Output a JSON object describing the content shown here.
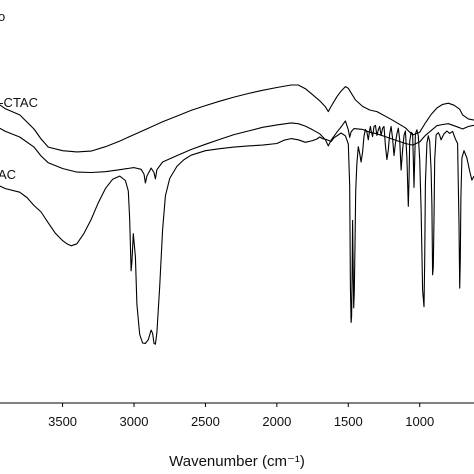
{
  "chart_data": {
    "type": "line",
    "xlabel": "Wavenumber (cm⁻¹)",
    "x_reversed": true,
    "xlim": [
      3980,
      620
    ],
    "ylim": [
      0,
      100
    ],
    "y_axis_labels": false,
    "grid": false,
    "x_ticks": [
      3500,
      3000,
      2500,
      2000,
      1500,
      1000
    ],
    "series": [
      {
        "name": "o",
        "points": [
          [
            3980,
            75
          ],
          [
            3900,
            73
          ],
          [
            3800,
            71.5
          ],
          [
            3700,
            68
          ],
          [
            3650,
            65.5
          ],
          [
            3600,
            63.5
          ],
          [
            3500,
            62.6
          ],
          [
            3400,
            62.3
          ],
          [
            3300,
            62.5
          ],
          [
            3200,
            63.6
          ],
          [
            3100,
            65
          ],
          [
            3000,
            66.6
          ],
          [
            2900,
            68.2
          ],
          [
            2800,
            69.8
          ],
          [
            2700,
            71.2
          ],
          [
            2600,
            72.6
          ],
          [
            2500,
            73.8
          ],
          [
            2400,
            74.9
          ],
          [
            2300,
            75.9
          ],
          [
            2200,
            76.8
          ],
          [
            2100,
            77.6
          ],
          [
            2000,
            78.3
          ],
          [
            1900,
            78.9
          ],
          [
            1850,
            78.9
          ],
          [
            1800,
            78
          ],
          [
            1750,
            76.5
          ],
          [
            1700,
            75
          ],
          [
            1660,
            73.5
          ],
          [
            1640,
            72.3
          ],
          [
            1620,
            73.6
          ],
          [
            1580,
            76
          ],
          [
            1550,
            77.4
          ],
          [
            1520,
            78.5
          ],
          [
            1500,
            78.1
          ],
          [
            1450,
            75.2
          ],
          [
            1400,
            73.6
          ],
          [
            1350,
            72.7
          ],
          [
            1300,
            72.3
          ],
          [
            1200,
            70.4
          ],
          [
            1100,
            68.3
          ],
          [
            1050,
            66.5
          ],
          [
            1000,
            67.2
          ],
          [
            960,
            69.5
          ],
          [
            920,
            71.6
          ],
          [
            880,
            73.2
          ],
          [
            840,
            74.1
          ],
          [
            800,
            74.4
          ],
          [
            760,
            73.9
          ],
          [
            720,
            72.9
          ],
          [
            700,
            71.5
          ],
          [
            660,
            70.5
          ],
          [
            620,
            70.2
          ]
        ]
      },
      {
        "name": "o-CTAC",
        "points": [
          [
            3980,
            69
          ],
          [
            3900,
            67.4
          ],
          [
            3800,
            66
          ],
          [
            3700,
            63.5
          ],
          [
            3650,
            61.3
          ],
          [
            3600,
            59.6
          ],
          [
            3500,
            58.2
          ],
          [
            3400,
            57.3
          ],
          [
            3300,
            57.2
          ],
          [
            3200,
            57.4
          ],
          [
            3100,
            57.9
          ],
          [
            3000,
            58.4
          ],
          [
            2950,
            58
          ],
          [
            2930,
            56.8
          ],
          [
            2920,
            54.6
          ],
          [
            2910,
            56.3
          ],
          [
            2880,
            58.3
          ],
          [
            2860,
            57.2
          ],
          [
            2850,
            55.6
          ],
          [
            2840,
            57.9
          ],
          [
            2800,
            59.8
          ],
          [
            2700,
            61.4
          ],
          [
            2600,
            62.9
          ],
          [
            2500,
            64.2
          ],
          [
            2400,
            65.4
          ],
          [
            2300,
            66.6
          ],
          [
            2200,
            67.5
          ],
          [
            2100,
            68.4
          ],
          [
            2000,
            69
          ],
          [
            1900,
            69.5
          ],
          [
            1850,
            69.3
          ],
          [
            1800,
            68.7
          ],
          [
            1750,
            67.8
          ],
          [
            1700,
            66.8
          ],
          [
            1660,
            65.3
          ],
          [
            1640,
            63.8
          ],
          [
            1620,
            65.2
          ],
          [
            1580,
            67.2
          ],
          [
            1550,
            68.5
          ],
          [
            1520,
            70
          ],
          [
            1500,
            67.8
          ],
          [
            1490,
            65.9
          ],
          [
            1480,
            67.3
          ],
          [
            1460,
            68.1
          ],
          [
            1400,
            67.9
          ],
          [
            1350,
            67.2
          ],
          [
            1300,
            66.8
          ],
          [
            1200,
            65.6
          ],
          [
            1100,
            64.4
          ],
          [
            1050,
            64
          ],
          [
            1000,
            64.8
          ],
          [
            960,
            66.4
          ],
          [
            920,
            67.6
          ],
          [
            880,
            68.8
          ],
          [
            840,
            69.1
          ],
          [
            800,
            69.3
          ],
          [
            760,
            68.8
          ],
          [
            720,
            68.3
          ],
          [
            700,
            68
          ],
          [
            660,
            68.6
          ],
          [
            620,
            68.9
          ]
        ]
      },
      {
        "name": "AC",
        "points": [
          [
            3980,
            54.5
          ],
          [
            3900,
            53.2
          ],
          [
            3800,
            52.3
          ],
          [
            3750,
            51
          ],
          [
            3700,
            49
          ],
          [
            3650,
            47.4
          ],
          [
            3600,
            44.7
          ],
          [
            3550,
            42.1
          ],
          [
            3500,
            40.3
          ],
          [
            3470,
            39.5
          ],
          [
            3440,
            39
          ],
          [
            3400,
            39.5
          ],
          [
            3350,
            42.1
          ],
          [
            3300,
            45.5
          ],
          [
            3250,
            49.7
          ],
          [
            3200,
            53.2
          ],
          [
            3150,
            55.5
          ],
          [
            3100,
            56.3
          ],
          [
            3060,
            55.2
          ],
          [
            3040,
            52.6
          ],
          [
            3030,
            45.5
          ],
          [
            3020,
            32.8
          ],
          [
            3015,
            35
          ],
          [
            3005,
            42
          ],
          [
            2990,
            36.3
          ],
          [
            2980,
            24.5
          ],
          [
            2960,
            17
          ],
          [
            2940,
            14.9
          ],
          [
            2920,
            14.8
          ],
          [
            2900,
            15.7
          ],
          [
            2880,
            18.1
          ],
          [
            2870,
            17.3
          ],
          [
            2860,
            14.8
          ],
          [
            2850,
            14.6
          ],
          [
            2840,
            17.5
          ],
          [
            2820,
            28.9
          ],
          [
            2800,
            43
          ],
          [
            2780,
            51.4
          ],
          [
            2750,
            55.7
          ],
          [
            2700,
            58.7
          ],
          [
            2650,
            60.4
          ],
          [
            2600,
            61.5
          ],
          [
            2500,
            62.6
          ],
          [
            2400,
            63.1
          ],
          [
            2300,
            63.5
          ],
          [
            2200,
            63.8
          ],
          [
            2100,
            64
          ],
          [
            2000,
            64.4
          ],
          [
            1950,
            65.2
          ],
          [
            1900,
            65.6
          ],
          [
            1850,
            65.3
          ],
          [
            1800,
            64.7
          ],
          [
            1750,
            65.1
          ],
          [
            1720,
            65.5
          ],
          [
            1700,
            66
          ],
          [
            1680,
            65.6
          ],
          [
            1650,
            65.3
          ],
          [
            1620,
            64.9
          ],
          [
            1600,
            65.8
          ],
          [
            1550,
            67
          ],
          [
            1520,
            66.3
          ],
          [
            1500,
            64.3
          ],
          [
            1490,
            53.8
          ],
          [
            1485,
            28.8
          ],
          [
            1480,
            20
          ],
          [
            1477,
            21.5
          ],
          [
            1473,
            31.4
          ],
          [
            1470,
            45.3
          ],
          [
            1465,
            31
          ],
          [
            1462,
            23.6
          ],
          [
            1458,
            27.7
          ],
          [
            1453,
            39.2
          ],
          [
            1448,
            52.6
          ],
          [
            1440,
            59.5
          ],
          [
            1430,
            63.6
          ],
          [
            1420,
            61.9
          ],
          [
            1410,
            59.8
          ],
          [
            1400,
            62.3
          ],
          [
            1390,
            66.2
          ],
          [
            1380,
            67.9
          ],
          [
            1370,
            67.2
          ],
          [
            1360,
            65.3
          ],
          [
            1350,
            67.8
          ],
          [
            1345,
            68.6
          ],
          [
            1340,
            67.6
          ],
          [
            1330,
            66.1
          ],
          [
            1320,
            68.6
          ],
          [
            1310,
            68.9
          ],
          [
            1300,
            66.4
          ],
          [
            1290,
            67.8
          ],
          [
            1280,
            68.6
          ],
          [
            1270,
            66.4
          ],
          [
            1260,
            68.2
          ],
          [
            1250,
            68.6
          ],
          [
            1240,
            63.9
          ],
          [
            1230,
            60.4
          ],
          [
            1220,
            62.8
          ],
          [
            1210,
            66.8
          ],
          [
            1200,
            68.6
          ],
          [
            1190,
            65.6
          ],
          [
            1180,
            61.4
          ],
          [
            1170,
            64.4
          ],
          [
            1160,
            66.8
          ],
          [
            1150,
            68.2
          ],
          [
            1140,
            65.3
          ],
          [
            1130,
            57.8
          ],
          [
            1120,
            62.8
          ],
          [
            1110,
            66.4
          ],
          [
            1100,
            67.5
          ],
          [
            1090,
            60.9
          ],
          [
            1080,
            48.8
          ],
          [
            1075,
            55.1
          ],
          [
            1070,
            64.9
          ],
          [
            1060,
            67.2
          ],
          [
            1050,
            66.8
          ],
          [
            1045,
            60.7
          ],
          [
            1040,
            53.5
          ],
          [
            1035,
            60.4
          ],
          [
            1030,
            66.8
          ],
          [
            1020,
            67.8
          ],
          [
            1010,
            66.3
          ],
          [
            1000,
            60.4
          ],
          [
            990,
            48.1
          ],
          [
            980,
            28
          ],
          [
            970,
            23.9
          ],
          [
            965,
            35.3
          ],
          [
            960,
            54.6
          ],
          [
            950,
            64.5
          ],
          [
            940,
            66.3
          ],
          [
            930,
            64.9
          ],
          [
            920,
            57.8
          ],
          [
            915,
            49.2
          ],
          [
            910,
            31.8
          ],
          [
            905,
            33.7
          ],
          [
            900,
            45.7
          ],
          [
            895,
            60.4
          ],
          [
            885,
            66.5
          ],
          [
            870,
            67.1
          ],
          [
            860,
            66.4
          ],
          [
            850,
            65.3
          ],
          [
            830,
            66.8
          ],
          [
            810,
            67.5
          ],
          [
            790,
            66.9
          ],
          [
            770,
            67.4
          ],
          [
            750,
            65.5
          ],
          [
            735,
            64.4
          ],
          [
            725,
            44.2
          ],
          [
            720,
            28.5
          ],
          [
            716,
            35.5
          ],
          [
            712,
            51.1
          ],
          [
            705,
            60.8
          ],
          [
            690,
            62.6
          ],
          [
            670,
            60.8
          ],
          [
            650,
            57.5
          ],
          [
            635,
            55.3
          ],
          [
            620,
            56.3
          ]
        ]
      }
    ]
  }
}
